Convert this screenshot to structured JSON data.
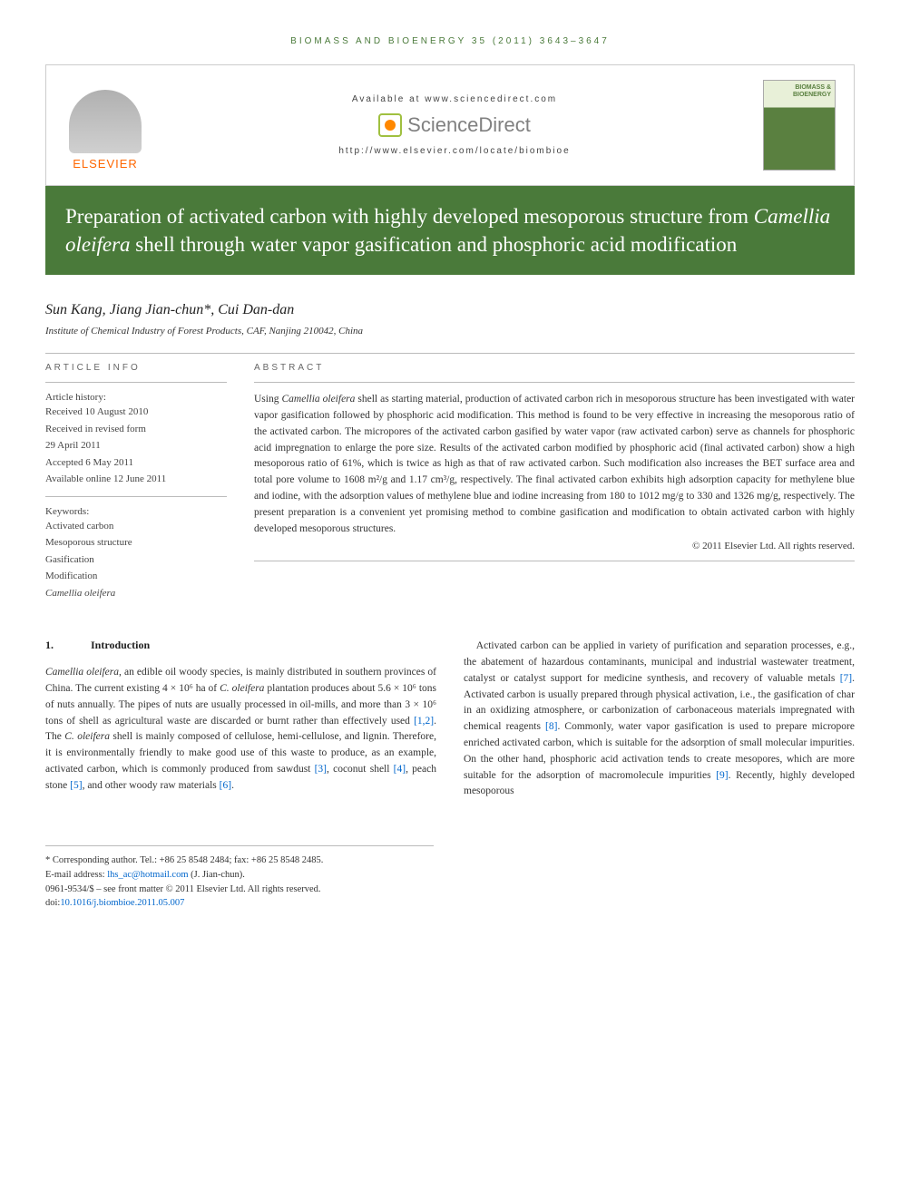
{
  "header": {
    "journal_ref": "BIOMASS AND BIOENERGY 35 (2011) 3643–3647",
    "availability": "Available at www.sciencedirect.com",
    "sciencedirect": "ScienceDirect",
    "locate_url": "http://www.elsevier.com/locate/biombioe",
    "publisher": "ELSEVIER",
    "cover_title": "BIOMASS & BIOENERGY"
  },
  "title_parts": {
    "pre": "Preparation of activated carbon with highly developed mesoporous structure from ",
    "species": "Camellia oleifera",
    "post": " shell through water vapor gasification and phosphoric acid modification"
  },
  "authors": "Sun Kang, Jiang Jian-chun*, Cui Dan-dan",
  "affiliation": "Institute of Chemical Industry of Forest Products, CAF, Nanjing 210042, China",
  "article_info": {
    "heading": "ARTICLE INFO",
    "history_label": "Article history:",
    "received": "Received 10 August 2010",
    "revised1": "Received in revised form",
    "revised2": "29 April 2011",
    "accepted": "Accepted 6 May 2011",
    "online": "Available online 12 June 2011",
    "keywords_label": "Keywords:",
    "kw1": "Activated carbon",
    "kw2": "Mesoporous structure",
    "kw3": "Gasification",
    "kw4": "Modification",
    "kw5": "Camellia oleifera"
  },
  "abstract": {
    "heading": "ABSTRACT",
    "text_pre": "Using ",
    "text_species": "Camellia oleifera",
    "text_post": " shell as starting material, production of activated carbon rich in mesoporous structure has been investigated with water vapor gasification followed by phosphoric acid modification. This method is found to be very effective in increasing the mesoporous ratio of the activated carbon. The micropores of the activated carbon gasified by water vapor (raw activated carbon) serve as channels for phosphoric acid impregnation to enlarge the pore size. Results of the activated carbon modified by phosphoric acid (final activated carbon) show a high mesoporous ratio of 61%, which is twice as high as that of raw activated carbon. Such modification also increases the BET surface area and total pore volume to 1608 m²/g and 1.17 cm³/g, respectively. The final activated carbon exhibits high adsorption capacity for methylene blue and iodine, with the adsorption values of methylene blue and iodine increasing from 180 to 1012 mg/g to 330 and 1326 mg/g, respectively. The present preparation is a convenient yet promising method to combine gasification and modification to obtain activated carbon with highly developed mesoporous structures.",
    "copyright": "© 2011 Elsevier Ltd. All rights reserved."
  },
  "intro": {
    "number": "1.",
    "heading": "Introduction",
    "col1_p1_species": "Camellia oleifera",
    "col1_p1_a": ", an edible oil woody species, is mainly distributed in southern provinces of China. The current existing 4 × 10⁶ ha of ",
    "col1_p1_species2": "C. oleifera",
    "col1_p1_b": " plantation produces about 5.6 × 10⁶ tons of nuts annually. The pipes of nuts are usually processed in oil-mills, and more than 3 × 10⁶ tons of shell as agricultural waste are discarded or burnt rather than effectively used ",
    "col1_cite1": "[1,2]",
    "col1_p1_c": ". The ",
    "col1_p1_species3": "C. oleifera",
    "col1_p1_d": " shell is mainly composed of cellulose, hemi-cellulose, and lignin. Therefore, it is environmentally friendly to make good use of this waste to produce, as an example, activated carbon, which is commonly produced from sawdust ",
    "col1_cite2": "[3]",
    "col1_p1_e": ", coconut shell ",
    "col1_cite3": "[4]",
    "col1_p1_f": ", peach stone ",
    "col1_cite4": "[5]",
    "col1_p1_g": ", and other woody raw materials ",
    "col1_cite5": "[6]",
    "col1_p1_h": ".",
    "col2_p1_a": "Activated carbon can be applied in variety of purification and separation processes, e.g., the abatement of hazardous contaminants, municipal and industrial wastewater treatment, catalyst or catalyst support for medicine synthesis, and recovery of valuable metals ",
    "col2_cite1": "[7]",
    "col2_p1_b": ". Activated carbon is usually prepared through physical activation, i.e., the gasification of char in an oxidizing atmosphere, or carbonization of carbonaceous materials impregnated with chemical reagents ",
    "col2_cite2": "[8]",
    "col2_p1_c": ". Commonly, water vapor gasification is used to prepare micropore enriched activated carbon, which is suitable for the adsorption of small molecular impurities. On the other hand, phosphoric acid activation tends to create mesopores, which are more suitable for the adsorption of macromolecule impurities ",
    "col2_cite3": "[9]",
    "col2_p1_d": ". Recently, highly developed mesoporous"
  },
  "footnotes": {
    "corresponding": "* Corresponding author. Tel.: +86 25 8548 2484; fax: +86 25 8548 2485.",
    "email_label": "E-mail address: ",
    "email": "lhs_ac@hotmail.com",
    "email_person": " (J. Jian-chun).",
    "issn": "0961-9534/$ – see front matter © 2011 Elsevier Ltd. All rights reserved.",
    "doi_label": "doi:",
    "doi": "10.1016/j.biombioe.2011.05.007"
  },
  "colors": {
    "green": "#4a7a3a",
    "orange": "#ff6600",
    "link": "#0066cc"
  }
}
